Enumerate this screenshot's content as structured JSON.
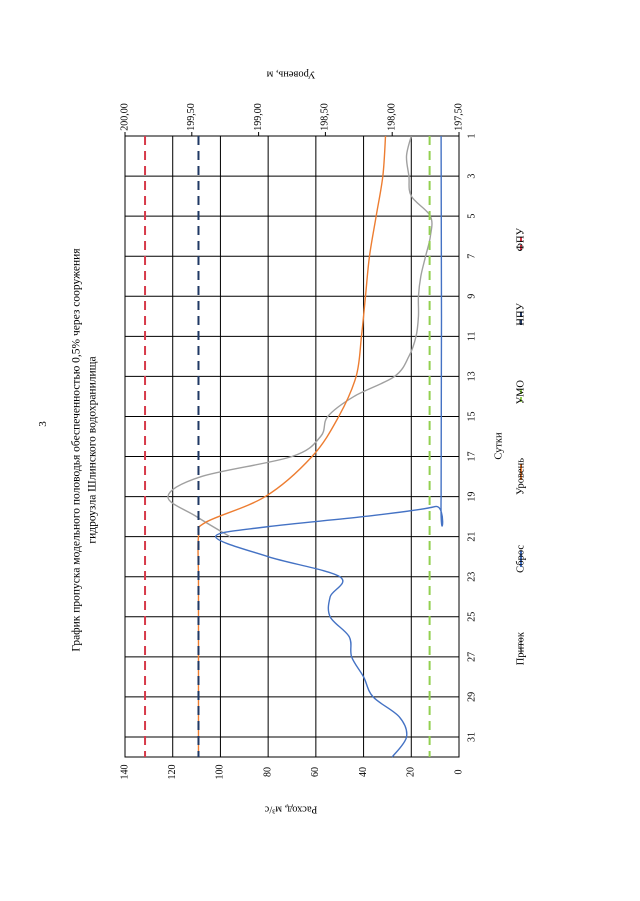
{
  "page": {
    "number": "3"
  },
  "chart_data": {
    "type": "line",
    "title_line1": "График пропуска модельного половодья обеспеченностью 0,5% через сооружения",
    "title_line2": "гидроузла Шлинского водохранилища",
    "xlabel": "Сутки",
    "ylabel_left": "Расход, м³/с",
    "ylabel_right": "Уровень, м",
    "xlim": [
      1,
      32
    ],
    "ylim_left": [
      0,
      140
    ],
    "ylim_right": [
      197.5,
      200.0
    ],
    "x_ticks": [
      "1",
      "3",
      "5",
      "7",
      "9",
      "11",
      "13",
      "15",
      "17",
      "19",
      "21",
      "23",
      "25",
      "27",
      "29",
      "31"
    ],
    "y_ticks_left": [
      "0",
      "20",
      "40",
      "60",
      "80",
      "100",
      "120",
      "140"
    ],
    "y_ticks_right": [
      "197,50",
      "198,00",
      "198,50",
      "199,00",
      "199,50",
      "200,00"
    ],
    "grid": true,
    "legend_position": "bottom",
    "series": [
      {
        "name": "Приток",
        "axis": "left",
        "color": "#a0a0a0",
        "dash": "solid",
        "x": [
          1,
          2,
          3,
          4,
          5,
          6,
          7,
          8,
          9,
          10,
          11,
          12,
          13,
          14,
          15,
          16,
          17,
          18,
          19,
          20,
          21
        ],
        "y": [
          20,
          22,
          21,
          20,
          12,
          12,
          14,
          16,
          17,
          17,
          18,
          21,
          27,
          44,
          55,
          58,
          70,
          108,
          122,
          110,
          96
        ]
      },
      {
        "name": "Сброс",
        "axis": "left",
        "color": "#4472c4",
        "dash": "solid",
        "x": [
          1,
          19,
          19.5,
          20,
          20.5,
          21,
          22,
          23,
          24,
          25,
          26,
          27,
          28,
          29,
          30,
          31,
          32
        ],
        "y": [
          7.5,
          7.5,
          10,
          40,
          80,
          102,
          80,
          50,
          54,
          54,
          46,
          45,
          40,
          36,
          25,
          22,
          28
        ]
      },
      {
        "name": "Уровень",
        "axis": "right",
        "color": "#ed7d31",
        "dash": "solid",
        "x": [
          1,
          3,
          5,
          7,
          9,
          11,
          13,
          15,
          17,
          19,
          20.3,
          21,
          23,
          25,
          27,
          29,
          31,
          32
        ],
        "y": [
          198.05,
          198.07,
          198.12,
          198.17,
          198.2,
          198.23,
          198.27,
          198.4,
          198.6,
          198.95,
          199.4,
          199.45,
          199.45,
          199.45,
          199.45,
          199.45,
          199.45,
          199.45
        ]
      },
      {
        "name": "УМО",
        "axis": "right",
        "color": "#92d050",
        "dash": "dashed",
        "x": [
          1,
          32
        ],
        "y": [
          197.72,
          197.72
        ]
      },
      {
        "name": "НПУ",
        "axis": "right",
        "color": "#1f3864",
        "dash": "dashed",
        "x": [
          1,
          32
        ],
        "y": [
          199.45,
          199.45
        ]
      },
      {
        "name": "ФПУ",
        "axis": "right",
        "color": "#d63a4a",
        "dash": "dashed",
        "x": [
          1,
          32
        ],
        "y": [
          199.85,
          199.85
        ]
      }
    ]
  }
}
